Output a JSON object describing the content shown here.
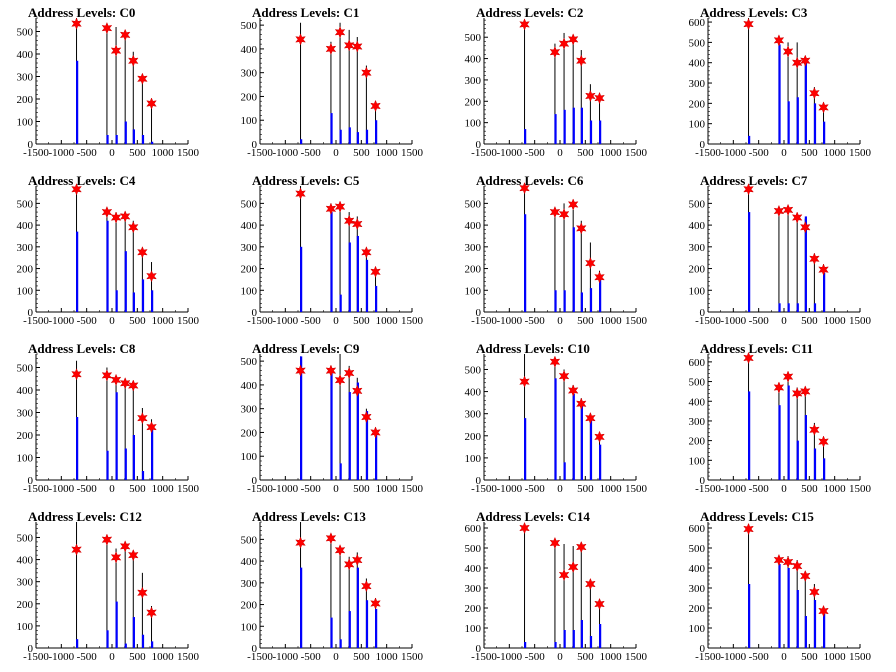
{
  "chart_data": [
    {
      "type": "bar",
      "title": "Address Levels: C0",
      "xlim": [
        -1500,
        1500
      ],
      "ylim": [
        0,
        560
      ],
      "yticks": [
        0,
        100,
        200,
        300,
        400,
        500
      ],
      "xticks": [
        -1500,
        -1000,
        -500,
        0,
        500,
        1000,
        1500
      ],
      "x": [
        -700,
        -100,
        80,
        260,
        420,
        600,
        780
      ],
      "bars": [
        370,
        40,
        40,
        100,
        65,
        40,
        10
      ],
      "peaks": [
        560,
        500,
        520,
        480,
        410,
        300,
        200
      ],
      "markers": [
        535,
        515,
        415,
        485,
        370,
        290,
        180
      ],
      "colors": {
        "bar": "#0000ff",
        "peak": "#000000",
        "marker": "#ff0000"
      }
    },
    {
      "type": "bar",
      "title": "Address Levels: C1",
      "xlim": [
        -1500,
        1500
      ],
      "ylim": [
        0,
        530
      ],
      "yticks": [
        0,
        100,
        200,
        300,
        400,
        500
      ],
      "xticks": [
        -1500,
        -1000,
        -500,
        0,
        500,
        1000,
        1500
      ],
      "x": [
        -700,
        -100,
        80,
        260,
        420,
        600,
        780
      ],
      "bars": [
        20,
        130,
        60,
        70,
        50,
        60,
        100
      ],
      "peaks": [
        510,
        430,
        510,
        480,
        450,
        330,
        180
      ],
      "markers": [
        440,
        400,
        470,
        415,
        410,
        300,
        160
      ],
      "colors": {
        "bar": "#0000ff",
        "peak": "#000000",
        "marker": "#ff0000"
      }
    },
    {
      "type": "bar",
      "title": "Address Levels: C2",
      "xlim": [
        -1500,
        1500
      ],
      "ylim": [
        0,
        590
      ],
      "yticks": [
        0,
        100,
        200,
        300,
        400,
        500
      ],
      "xticks": [
        -1500,
        -1000,
        -500,
        0,
        500,
        1000,
        1500
      ],
      "x": [
        -700,
        -100,
        80,
        260,
        420,
        600,
        780
      ],
      "bars": [
        70,
        140,
        160,
        170,
        170,
        110,
        110
      ],
      "peaks": [
        570,
        470,
        520,
        500,
        440,
        280,
        240
      ],
      "markers": [
        560,
        430,
        470,
        490,
        390,
        225,
        215
      ],
      "colors": {
        "bar": "#0000ff",
        "peak": "#000000",
        "marker": "#ff0000"
      }
    },
    {
      "type": "bar",
      "title": "Address Levels: C3",
      "xlim": [
        -1500,
        1500
      ],
      "ylim": [
        0,
        620
      ],
      "yticks": [
        0,
        100,
        200,
        300,
        400,
        500,
        600
      ],
      "xticks": [
        -1500,
        -1000,
        -500,
        0,
        500,
        1000,
        1500
      ],
      "x": [
        -700,
        -100,
        80,
        260,
        420,
        600,
        780
      ],
      "bars": [
        40,
        490,
        210,
        230,
        400,
        200,
        110
      ],
      "peaks": [
        620,
        510,
        500,
        500,
        410,
        280,
        200
      ],
      "markers": [
        590,
        510,
        455,
        400,
        410,
        250,
        180
      ],
      "colors": {
        "bar": "#0000ff",
        "peak": "#000000",
        "marker": "#ff0000"
      }
    },
    {
      "type": "bar",
      "title": "Address Levels: C4",
      "xlim": [
        -1500,
        1500
      ],
      "ylim": [
        0,
        580
      ],
      "yticks": [
        0,
        100,
        200,
        300,
        400,
        500
      ],
      "xticks": [
        -1500,
        -1000,
        -500,
        0,
        500,
        1000,
        1500
      ],
      "x": [
        -700,
        -100,
        80,
        260,
        420,
        600,
        780
      ],
      "bars": [
        370,
        420,
        100,
        280,
        90,
        150,
        100
      ],
      "peaks": [
        580,
        480,
        460,
        450,
        420,
        290,
        230
      ],
      "markers": [
        565,
        460,
        435,
        440,
        390,
        275,
        165
      ],
      "colors": {
        "bar": "#0000ff",
        "peak": "#000000",
        "marker": "#ff0000"
      }
    },
    {
      "type": "bar",
      "title": "Address Levels: C5",
      "xlim": [
        -1500,
        1500
      ],
      "ylim": [
        0,
        580
      ],
      "yticks": [
        0,
        100,
        200,
        300,
        400,
        500
      ],
      "xticks": [
        -1500,
        -1000,
        -500,
        0,
        500,
        1000,
        1500
      ],
      "x": [
        -700,
        -100,
        80,
        260,
        420,
        600,
        780
      ],
      "bars": [
        300,
        460,
        80,
        320,
        350,
        240,
        120
      ],
      "peaks": [
        580,
        500,
        480,
        460,
        440,
        290,
        200
      ],
      "markers": [
        545,
        475,
        485,
        420,
        405,
        275,
        185
      ],
      "colors": {
        "bar": "#0000ff",
        "peak": "#000000",
        "marker": "#ff0000"
      }
    },
    {
      "type": "bar",
      "title": "Address Levels: C6",
      "xlim": [
        -1500,
        1500
      ],
      "ylim": [
        0,
        580
      ],
      "yticks": [
        0,
        100,
        200,
        300,
        400,
        500
      ],
      "xticks": [
        -1500,
        -1000,
        -500,
        0,
        500,
        1000,
        1500
      ],
      "x": [
        -700,
        -100,
        80,
        260,
        420,
        600,
        780
      ],
      "bars": [
        450,
        100,
        100,
        390,
        90,
        110,
        160
      ],
      "peaks": [
        580,
        480,
        500,
        470,
        420,
        320,
        190
      ],
      "markers": [
        570,
        460,
        450,
        495,
        385,
        225,
        160
      ],
      "colors": {
        "bar": "#0000ff",
        "peak": "#000000",
        "marker": "#ff0000"
      }
    },
    {
      "type": "bar",
      "title": "Address Levels: C7",
      "xlim": [
        -1500,
        1500
      ],
      "ylim": [
        0,
        580
      ],
      "yticks": [
        0,
        100,
        200,
        300,
        400,
        500
      ],
      "xticks": [
        -1500,
        -1000,
        -500,
        0,
        500,
        1000,
        1500
      ],
      "x": [
        -700,
        -100,
        80,
        260,
        420,
        600,
        780
      ],
      "bars": [
        460,
        40,
        40,
        40,
        440,
        40,
        180
      ],
      "peaks": [
        580,
        480,
        480,
        450,
        430,
        270,
        220
      ],
      "markers": [
        565,
        465,
        470,
        435,
        390,
        245,
        195
      ],
      "colors": {
        "bar": "#0000ff",
        "peak": "#000000",
        "marker": "#ff0000"
      }
    },
    {
      "type": "bar",
      "title": "Address Levels: C8",
      "xlim": [
        -1500,
        1500
      ],
      "ylim": [
        0,
        560
      ],
      "yticks": [
        0,
        100,
        200,
        300,
        400,
        500
      ],
      "xticks": [
        -1500,
        -1000,
        -500,
        0,
        500,
        1000,
        1500
      ],
      "x": [
        -700,
        -100,
        80,
        260,
        420,
        600,
        780
      ],
      "bars": [
        280,
        130,
        390,
        140,
        200,
        40,
        230
      ],
      "peaks": [
        530,
        500,
        460,
        450,
        440,
        320,
        270
      ],
      "markers": [
        470,
        465,
        445,
        430,
        420,
        275,
        235
      ],
      "colors": {
        "bar": "#0000ff",
        "peak": "#000000",
        "marker": "#ff0000"
      }
    },
    {
      "type": "bar",
      "title": "Address Levels: C9",
      "xlim": [
        -1500,
        1500
      ],
      "ylim": [
        0,
        530
      ],
      "yticks": [
        0,
        100,
        200,
        300,
        400,
        500
      ],
      "xticks": [
        -1500,
        -1000,
        -500,
        0,
        500,
        1000,
        1500
      ],
      "x": [
        -700,
        -100,
        80,
        260,
        420,
        600,
        780
      ],
      "bars": [
        520,
        470,
        70,
        370,
        410,
        290,
        200
      ],
      "peaks": [
        520,
        480,
        530,
        480,
        430,
        300,
        220
      ],
      "markers": [
        460,
        460,
        420,
        450,
        375,
        265,
        200
      ],
      "colors": {
        "bar": "#0000ff",
        "peak": "#000000",
        "marker": "#ff0000"
      }
    },
    {
      "type": "bar",
      "title": "Address Levels: C10",
      "xlim": [
        -1500,
        1500
      ],
      "ylim": [
        0,
        570
      ],
      "yticks": [
        0,
        100,
        200,
        300,
        400,
        500
      ],
      "xticks": [
        -1500,
        -1000,
        -500,
        0,
        500,
        1000,
        1500
      ],
      "x": [
        -700,
        -100,
        80,
        260,
        420,
        600,
        780
      ],
      "bars": [
        280,
        460,
        80,
        390,
        340,
        280,
        160
      ],
      "peaks": [
        570,
        550,
        500,
        430,
        370,
        300,
        210
      ],
      "markers": [
        445,
        535,
        470,
        405,
        345,
        280,
        195
      ],
      "colors": {
        "bar": "#0000ff",
        "peak": "#000000",
        "marker": "#ff0000"
      }
    },
    {
      "type": "bar",
      "title": "Address Levels: C11",
      "xlim": [
        -1500,
        1500
      ],
      "ylim": [
        0,
        640
      ],
      "yticks": [
        0,
        100,
        200,
        300,
        400,
        500,
        600
      ],
      "xticks": [
        -1500,
        -1000,
        -500,
        0,
        500,
        1000,
        1500
      ],
      "x": [
        -700,
        -100,
        80,
        260,
        420,
        600,
        780
      ],
      "bars": [
        450,
        380,
        480,
        200,
        330,
        160,
        110
      ],
      "peaks": [
        640,
        490,
        540,
        470,
        460,
        290,
        210
      ],
      "markers": [
        620,
        470,
        525,
        440,
        450,
        255,
        195
      ],
      "colors": {
        "bar": "#0000ff",
        "peak": "#000000",
        "marker": "#ff0000"
      }
    },
    {
      "type": "bar",
      "title": "Address Levels: C12",
      "xlim": [
        -1500,
        1500
      ],
      "ylim": [
        0,
        570
      ],
      "yticks": [
        0,
        100,
        200,
        300,
        400,
        500
      ],
      "xticks": [
        -1500,
        -1000,
        -500,
        0,
        500,
        1000,
        1500
      ],
      "x": [
        -700,
        -100,
        80,
        260,
        420,
        600,
        780
      ],
      "bars": [
        40,
        80,
        210,
        20,
        140,
        60,
        30
      ],
      "peaks": [
        570,
        500,
        450,
        470,
        440,
        340,
        190
      ],
      "markers": [
        445,
        490,
        410,
        460,
        420,
        250,
        160
      ],
      "colors": {
        "bar": "#0000ff",
        "peak": "#000000",
        "marker": "#ff0000"
      }
    },
    {
      "type": "bar",
      "title": "Address Levels: C13",
      "xlim": [
        -1500,
        1500
      ],
      "ylim": [
        0,
        580
      ],
      "yticks": [
        0,
        100,
        200,
        300,
        400,
        500
      ],
      "xticks": [
        -1500,
        -1000,
        -500,
        0,
        500,
        1000,
        1500
      ],
      "x": [
        -700,
        -100,
        80,
        260,
        420,
        600,
        780
      ],
      "bars": [
        370,
        140,
        40,
        170,
        370,
        220,
        180
      ],
      "peaks": [
        580,
        520,
        470,
        420,
        440,
        320,
        230
      ],
      "markers": [
        485,
        505,
        450,
        385,
        405,
        285,
        205
      ],
      "colors": {
        "bar": "#0000ff",
        "peak": "#000000",
        "marker": "#ff0000"
      }
    },
    {
      "type": "bar",
      "title": "Address Levels: C14",
      "xlim": [
        -1500,
        1500
      ],
      "ylim": [
        0,
        630
      ],
      "yticks": [
        0,
        100,
        200,
        300,
        400,
        500,
        600
      ],
      "xticks": [
        -1500,
        -1000,
        -500,
        0,
        500,
        1000,
        1500
      ],
      "x": [
        -700,
        -100,
        80,
        260,
        420,
        600,
        780
      ],
      "bars": [
        30,
        30,
        90,
        90,
        140,
        60,
        120
      ],
      "peaks": [
        620,
        540,
        520,
        510,
        520,
        330,
        240
      ],
      "markers": [
        600,
        525,
        365,
        405,
        505,
        320,
        220
      ],
      "colors": {
        "bar": "#0000ff",
        "peak": "#000000",
        "marker": "#ff0000"
      }
    },
    {
      "type": "bar",
      "title": "Address Levels: C15",
      "xlim": [
        -1500,
        1500
      ],
      "ylim": [
        0,
        630
      ],
      "yticks": [
        0,
        100,
        200,
        300,
        400,
        500,
        600
      ],
      "xticks": [
        -1500,
        -1000,
        -500,
        0,
        500,
        1000,
        1500
      ],
      "x": [
        -700,
        -100,
        80,
        260,
        420,
        600,
        780
      ],
      "bars": [
        320,
        420,
        400,
        290,
        160,
        240,
        170
      ],
      "peaks": [
        620,
        460,
        460,
        440,
        380,
        320,
        200
      ],
      "markers": [
        595,
        440,
        430,
        410,
        360,
        280,
        185
      ],
      "colors": {
        "bar": "#0000ff",
        "peak": "#000000",
        "marker": "#ff0000"
      }
    }
  ]
}
